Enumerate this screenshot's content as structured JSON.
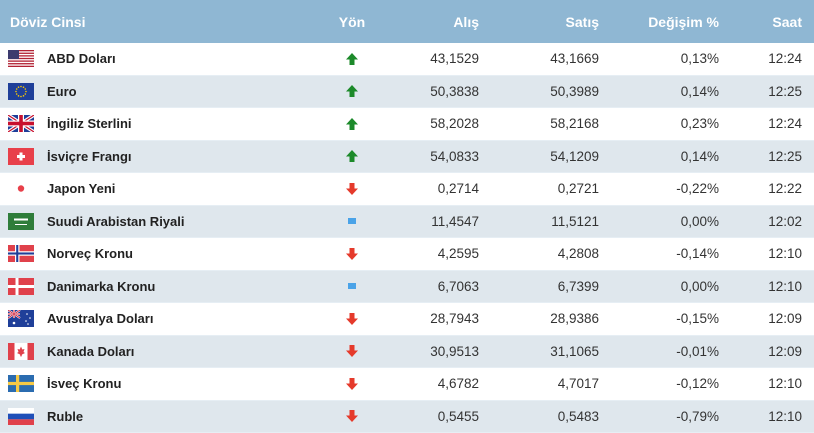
{
  "header": {
    "col_name": "Döviz Cinsi",
    "col_dir": "Yön",
    "col_buy": "Alış",
    "col_sell": "Satış",
    "col_change": "Değişim %",
    "col_time": "Saat"
  },
  "colors": {
    "header_bg": "#8fb7d3",
    "up": "#1c8a2a",
    "down": "#e53a2b",
    "flat": "#4aa3e8",
    "alt_row": "#dfe7ed"
  },
  "rows": [
    {
      "name": "ABD Doları",
      "flag": "us-flag-icon",
      "dir": "up",
      "buy": "43,1529",
      "sell": "43,1669",
      "change": "0,13%",
      "time": "12:24"
    },
    {
      "name": "Euro",
      "flag": "eu-flag-icon",
      "dir": "up",
      "buy": "50,3838",
      "sell": "50,3989",
      "change": "0,14%",
      "time": "12:25"
    },
    {
      "name": "İngiliz Sterlini",
      "flag": "uk-flag-icon",
      "dir": "up",
      "buy": "58,2028",
      "sell": "58,2168",
      "change": "0,23%",
      "time": "12:24"
    },
    {
      "name": "İsviçre Frangı",
      "flag": "ch-flag-icon",
      "dir": "up",
      "buy": "54,0833",
      "sell": "54,1209",
      "change": "0,14%",
      "time": "12:25"
    },
    {
      "name": "Japon Yeni",
      "flag": "jp-flag-icon",
      "dir": "down",
      "buy": "0,2714",
      "sell": "0,2721",
      "change": "-0,22%",
      "time": "12:22"
    },
    {
      "name": "Suudi Arabistan Riyali",
      "flag": "sa-flag-icon",
      "dir": "flat",
      "buy": "11,4547",
      "sell": "11,5121",
      "change": "0,00%",
      "time": "12:02"
    },
    {
      "name": "Norveç Kronu",
      "flag": "no-flag-icon",
      "dir": "down",
      "buy": "4,2595",
      "sell": "4,2808",
      "change": "-0,14%",
      "time": "12:10"
    },
    {
      "name": "Danimarka Kronu",
      "flag": "dk-flag-icon",
      "dir": "flat",
      "buy": "6,7063",
      "sell": "6,7399",
      "change": "0,00%",
      "time": "12:10"
    },
    {
      "name": "Avustralya Doları",
      "flag": "au-flag-icon",
      "dir": "down",
      "buy": "28,7943",
      "sell": "28,9386",
      "change": "-0,15%",
      "time": "12:09"
    },
    {
      "name": "Kanada Doları",
      "flag": "ca-flag-icon",
      "dir": "down",
      "buy": "30,9513",
      "sell": "31,1065",
      "change": "-0,01%",
      "time": "12:09"
    },
    {
      "name": "İsveç Kronu",
      "flag": "se-flag-icon",
      "dir": "down",
      "buy": "4,6782",
      "sell": "4,7017",
      "change": "-0,12%",
      "time": "12:10"
    },
    {
      "name": "Ruble",
      "flag": "ru-flag-icon",
      "dir": "down",
      "buy": "0,5455",
      "sell": "0,5483",
      "change": "-0,79%",
      "time": "12:10"
    }
  ]
}
